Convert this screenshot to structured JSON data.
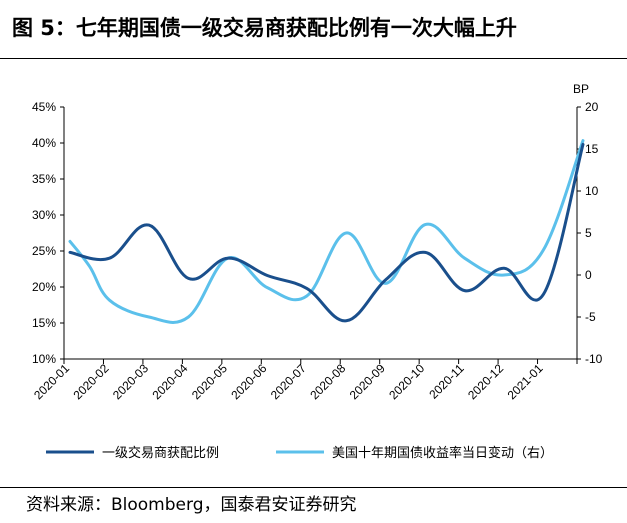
{
  "title": "图 5：七年期国债一级交易商获配比例有一次大幅上升",
  "source": "资料来源：Bloomberg，国泰君安证券研究",
  "chart_data": {
    "type": "line",
    "categories": [
      "2020-01",
      "2020-02",
      "2020-03",
      "2020-04",
      "2020-05",
      "2020-06",
      "2020-07",
      "2020-08",
      "2020-09",
      "2020-10",
      "2020-11",
      "2020-12",
      "2021-01"
    ],
    "x_positions": [
      0,
      0.5,
      1,
      2,
      3,
      4,
      5,
      6,
      7,
      8,
      9,
      10,
      11,
      12,
      13
    ],
    "y_left": {
      "label": "",
      "min": 10,
      "max": 45,
      "step": 5,
      "format": "percent",
      "ticks": [
        "10%",
        "15%",
        "20%",
        "25%",
        "30%",
        "35%",
        "40%",
        "45%"
      ]
    },
    "y_right": {
      "label": "BP",
      "min": -10,
      "max": 20,
      "step": 5,
      "ticks": [
        "-10",
        "-5",
        "0",
        "5",
        "10",
        "15",
        "20"
      ]
    },
    "series": [
      {
        "name": "一级交易商获配比例",
        "axis": "left",
        "color": "#1a4f8c",
        "x": [
          0,
          1,
          2,
          3,
          4,
          5,
          6,
          7,
          8,
          9,
          10,
          11,
          12,
          13
        ],
        "values": [
          24.8,
          24.0,
          28.6,
          21.2,
          24.0,
          21.6,
          19.8,
          15.3,
          21.0,
          24.8,
          19.5,
          22.6,
          19.0,
          39.8
        ]
      },
      {
        "name": "美国十年期国债收益率当日变动（右）",
        "axis": "right",
        "color": "#5bc0eb",
        "x": [
          0,
          0.5,
          1,
          2,
          3,
          4,
          5,
          6,
          7,
          8,
          9,
          10,
          11,
          12,
          13
        ],
        "values": [
          4.0,
          1.0,
          -3.0,
          -5.0,
          -5.0,
          2.0,
          -1.5,
          -2.5,
          5.0,
          -1.0,
          6.0,
          2.0,
          0.0,
          3.0,
          16.0
        ]
      }
    ],
    "legend_position": "bottom",
    "grid": false
  }
}
